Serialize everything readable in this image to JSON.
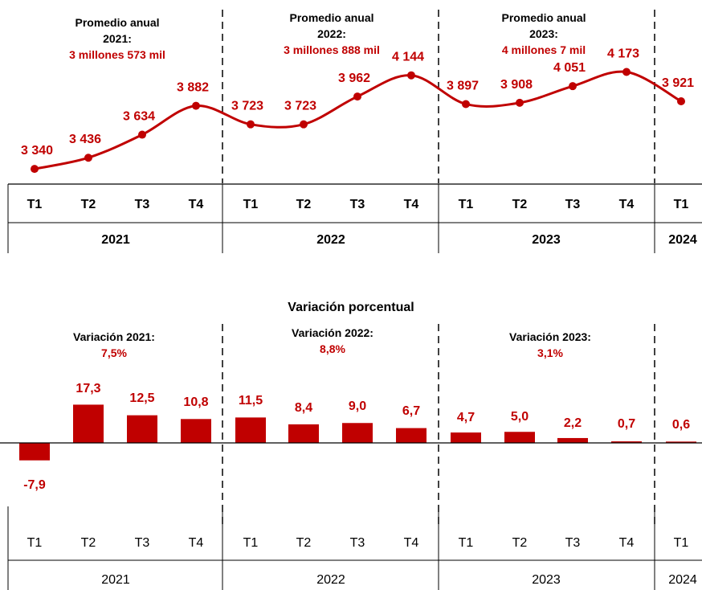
{
  "colors": {
    "accent": "#c00000",
    "text": "#000000",
    "axis": "#000000"
  },
  "chart_data": [
    {
      "type": "line",
      "title": "",
      "categories": [
        "T1",
        "T2",
        "T3",
        "T4",
        "T1",
        "T2",
        "T3",
        "T4",
        "T1",
        "T2",
        "T3",
        "T4",
        "T1"
      ],
      "years": [
        "2021",
        "2022",
        "2023",
        "2024"
      ],
      "value_labels": [
        "3 340",
        "3 436",
        "3 634",
        "3 882",
        "3 723",
        "3 723",
        "3 962",
        "4 144",
        "3 897",
        "3 908",
        "4 051",
        "4 173",
        "3 921"
      ],
      "values": [
        3340,
        3436,
        3634,
        3882,
        3723,
        3723,
        3962,
        4144,
        3897,
        3908,
        4051,
        4173,
        3921
      ],
      "annotations": [
        {
          "heading": "Promedio anual",
          "year_line": "2021:",
          "value": "3 millones 573 mil"
        },
        {
          "heading": "Promedio anual",
          "year_line": "2022:",
          "value": "3 millones 888 mil"
        },
        {
          "heading": "Promedio anual",
          "year_line": "2023:",
          "value": "4 millones 7 mil"
        }
      ]
    },
    {
      "type": "bar",
      "title": "Variación porcentual",
      "categories": [
        "T1",
        "T2",
        "T3",
        "T4",
        "T1",
        "T2",
        "T3",
        "T4",
        "T1",
        "T2",
        "T3",
        "T4",
        "T1"
      ],
      "years": [
        "2021",
        "2022",
        "2023",
        "2024"
      ],
      "value_labels": [
        "-7,9",
        "17,3",
        "12,5",
        "10,8",
        "11,5",
        "8,4",
        "9,0",
        "6,7",
        "4,7",
        "5,0",
        "2,2",
        "0,7",
        "0,6"
      ],
      "values": [
        -7.9,
        17.3,
        12.5,
        10.8,
        11.5,
        8.4,
        9.0,
        6.7,
        4.7,
        5.0,
        2.2,
        0.7,
        0.6
      ],
      "annotations": [
        {
          "heading": "Variación 2021:",
          "value": "7,5%"
        },
        {
          "heading": "Variación 2022:",
          "value": "8,8%"
        },
        {
          "heading": "Variación 2023:",
          "value": "3,1%"
        }
      ]
    }
  ]
}
